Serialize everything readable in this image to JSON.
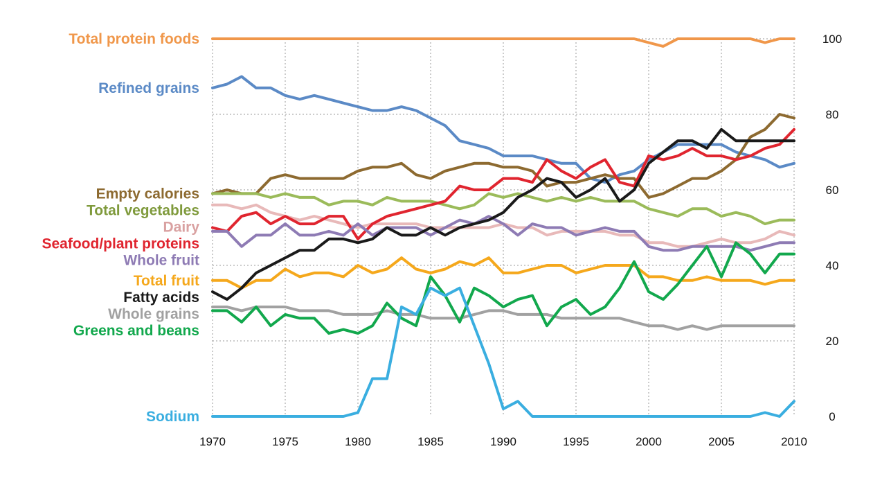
{
  "chart_data": {
    "type": "line",
    "title": "",
    "xlabel": "",
    "ylabel": "",
    "xlim": [
      1970,
      2010
    ],
    "ylim": [
      0,
      100
    ],
    "grid": true,
    "x": [
      1970,
      1971,
      1972,
      1973,
      1974,
      1975,
      1976,
      1977,
      1978,
      1979,
      1980,
      1981,
      1982,
      1983,
      1984,
      1985,
      1986,
      1987,
      1988,
      1989,
      1990,
      1991,
      1992,
      1993,
      1994,
      1995,
      1996,
      1997,
      1998,
      1999,
      2000,
      2001,
      2002,
      2003,
      2004,
      2005,
      2006,
      2007,
      2008,
      2009,
      2010
    ],
    "x_tick_labels": [
      "1970",
      "1975",
      "1980",
      "1985",
      "1990",
      "1995",
      "2000",
      "2005",
      "2010"
    ],
    "y_tick_labels": [
      "0",
      "20",
      "40",
      "60",
      "80",
      "100"
    ],
    "series": [
      {
        "name": "Total protein foods",
        "color": "#f0974a",
        "values": [
          100,
          100,
          100,
          100,
          100,
          100,
          100,
          100,
          100,
          100,
          100,
          100,
          100,
          100,
          100,
          100,
          100,
          100,
          100,
          100,
          100,
          100,
          100,
          100,
          100,
          100,
          100,
          100,
          100,
          100,
          99,
          98,
          100,
          100,
          100,
          100,
          100,
          100,
          99,
          100,
          100
        ]
      },
      {
        "name": "Refined grains",
        "color": "#5b8ac6",
        "values": [
          87,
          88,
          90,
          87,
          87,
          85,
          84,
          85,
          84,
          83,
          82,
          81,
          81,
          82,
          81,
          79,
          77,
          73,
          72,
          71,
          69,
          69,
          69,
          68,
          67,
          67,
          63,
          62,
          64,
          65,
          68,
          70,
          72,
          72,
          72,
          72,
          70,
          69,
          68,
          66,
          67
        ]
      },
      {
        "name": "Empty calories",
        "color": "#8d6a30",
        "values": [
          59,
          60,
          59,
          59,
          63,
          64,
          63,
          63,
          63,
          63,
          65,
          66,
          66,
          67,
          64,
          63,
          65,
          66,
          67,
          67,
          66,
          66,
          65,
          61,
          62,
          62,
          63,
          64,
          63,
          63,
          58,
          59,
          61,
          63,
          63,
          65,
          68,
          74,
          76,
          80,
          79
        ]
      },
      {
        "name": "Total vegetables",
        "color": "#9bbb5a",
        "values": [
          59,
          59,
          59,
          59,
          58,
          59,
          58,
          58,
          56,
          57,
          57,
          56,
          58,
          57,
          57,
          57,
          56,
          55,
          56,
          59,
          58,
          59,
          58,
          57,
          58,
          57,
          58,
          57,
          57,
          57,
          55,
          54,
          53,
          55,
          55,
          53,
          54,
          53,
          51,
          52,
          52
        ]
      },
      {
        "name": "Dairy",
        "color": "#e8b9b9",
        "values": [
          56,
          56,
          55,
          56,
          54,
          53,
          52,
          53,
          52,
          51,
          50,
          51,
          51,
          51,
          51,
          50,
          50,
          50,
          50,
          50,
          51,
          50,
          50,
          48,
          49,
          49,
          49,
          49,
          48,
          48,
          46,
          46,
          45,
          45,
          46,
          47,
          46,
          46,
          47,
          49,
          48
        ]
      },
      {
        "name": "Seafood/plant proteins",
        "color": "#e0252f",
        "values": [
          50,
          49,
          53,
          54,
          51,
          53,
          51,
          51,
          53,
          53,
          47,
          51,
          53,
          54,
          55,
          56,
          57,
          61,
          60,
          60,
          63,
          63,
          62,
          68,
          65,
          63,
          66,
          68,
          62,
          61,
          69,
          68,
          69,
          71,
          69,
          69,
          68,
          69,
          71,
          72,
          76
        ]
      },
      {
        "name": "Whole fruit",
        "color": "#8e7bb4",
        "values": [
          49,
          49,
          45,
          48,
          48,
          51,
          48,
          48,
          49,
          48,
          51,
          48,
          50,
          50,
          50,
          48,
          50,
          52,
          51,
          53,
          51,
          48,
          51,
          50,
          50,
          48,
          49,
          50,
          49,
          49,
          45,
          44,
          44,
          45,
          45,
          45,
          45,
          44,
          45,
          46,
          46
        ]
      },
      {
        "name": "Total fruit",
        "color": "#f5a81c",
        "values": [
          36,
          36,
          34,
          36,
          36,
          39,
          37,
          38,
          38,
          37,
          40,
          38,
          39,
          42,
          39,
          38,
          39,
          41,
          40,
          42,
          38,
          38,
          39,
          40,
          40,
          38,
          39,
          40,
          40,
          40,
          37,
          37,
          36,
          36,
          37,
          36,
          36,
          36,
          35,
          36,
          36
        ]
      },
      {
        "name": "Fatty acids",
        "color": "#1a1a1a",
        "values": [
          33,
          31,
          34,
          38,
          40,
          42,
          44,
          44,
          47,
          47,
          46,
          47,
          50,
          48,
          48,
          50,
          48,
          50,
          51,
          52,
          54,
          58,
          60,
          63,
          62,
          58,
          60,
          63,
          57,
          60,
          67,
          70,
          73,
          73,
          71,
          76,
          73,
          73,
          73,
          73,
          73
        ]
      },
      {
        "name": "Whole grains",
        "color": "#a1a1a1",
        "values": [
          29,
          29,
          28,
          29,
          29,
          29,
          28,
          28,
          28,
          27,
          27,
          27,
          28,
          27,
          27,
          26,
          26,
          26,
          27,
          28,
          28,
          27,
          27,
          27,
          26,
          26,
          26,
          26,
          26,
          25,
          24,
          24,
          23,
          24,
          23,
          24,
          24,
          24,
          24,
          24,
          24
        ]
      },
      {
        "name": "Greens and beans",
        "color": "#12a84d",
        "values": [
          28,
          28,
          25,
          29,
          24,
          27,
          26,
          26,
          22,
          23,
          22,
          24,
          30,
          26,
          24,
          37,
          32,
          25,
          34,
          32,
          29,
          31,
          32,
          24,
          29,
          31,
          27,
          29,
          34,
          41,
          33,
          31,
          35,
          40,
          45,
          37,
          46,
          43,
          38,
          43,
          43
        ]
      },
      {
        "name": "Sodium",
        "color": "#3aaee0",
        "values": [
          0,
          0,
          0,
          0,
          0,
          0,
          0,
          0,
          0,
          0,
          1,
          10,
          10,
          29,
          27,
          34,
          32,
          34,
          24,
          14,
          2,
          4,
          0,
          0,
          0,
          0,
          0,
          0,
          0,
          0,
          0,
          0,
          0,
          0,
          0,
          0,
          0,
          0,
          1,
          0,
          4
        ]
      }
    ]
  }
}
